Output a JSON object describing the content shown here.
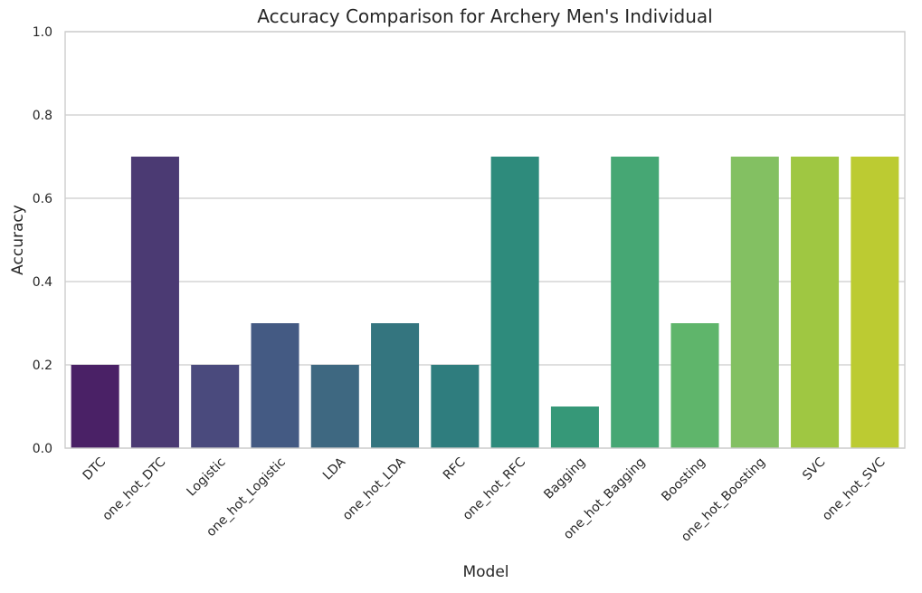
{
  "chart_data": {
    "type": "bar",
    "title": "Accuracy Comparison for Archery Men's Individual",
    "xlabel": "Model",
    "ylabel": "Accuracy",
    "ylim": [
      0,
      1.0
    ],
    "yticks": [
      "0.0",
      "0.2",
      "0.4",
      "0.6",
      "0.8",
      "1.0"
    ],
    "ytick_values": [
      0,
      0.2,
      0.4,
      0.6,
      0.8,
      1.0
    ],
    "grid": "horizontal",
    "categories": [
      "DTC",
      "one_hot_DTC",
      "Logistic",
      "one_hot_Logistic",
      "LDA",
      "one_hot_LDA",
      "RFC",
      "one_hot_RFC",
      "Bagging",
      "one_hot_Bagging",
      "Boosting",
      "one_hot_Boosting",
      "SVC",
      "one_hot_SVC"
    ],
    "values": [
      0.2,
      0.7,
      0.2,
      0.3,
      0.2,
      0.3,
      0.2,
      0.7,
      0.1,
      0.7,
      0.3,
      0.7,
      0.7,
      0.7
    ],
    "colors": [
      "#4a2166",
      "#4b3a73",
      "#4a4a7d",
      "#445a83",
      "#3e6881",
      "#34757f",
      "#2f7d7e",
      "#2e8b7c",
      "#369878",
      "#46a774",
      "#5fb56b",
      "#83c062",
      "#9fc742",
      "#bccb32"
    ],
    "tick_rotation": "45 degrees"
  }
}
